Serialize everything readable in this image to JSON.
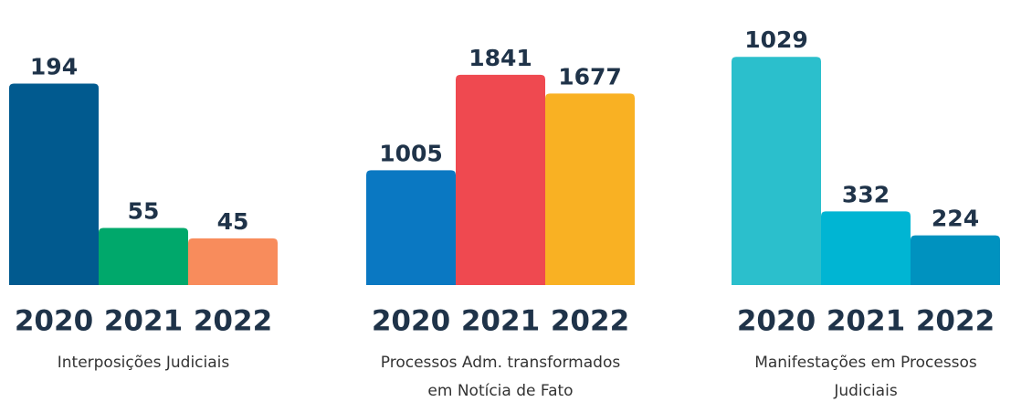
{
  "chart_data": [
    {
      "type": "bar",
      "title": [
        "Interposições Judiciais"
      ],
      "categories": [
        "2020",
        "2021",
        "2022"
      ],
      "values": [
        194,
        55,
        45
      ],
      "colors": [
        "#015a8f",
        "#00a86b",
        "#f88c5c"
      ],
      "ylim": [
        0,
        220
      ]
    },
    {
      "type": "bar",
      "title": [
        "Processos Adm. transformados",
        "em Notícia de Fato"
      ],
      "categories": [
        "2020",
        "2021",
        "2022"
      ],
      "values": [
        1005,
        1841,
        1677
      ],
      "colors": [
        "#0a78c2",
        "#ef4950",
        "#f9b123"
      ],
      "ylim": [
        0,
        2000
      ]
    },
    {
      "type": "bar",
      "title": [
        "Manifestações em Processos",
        "Judiciais"
      ],
      "categories": [
        "2020",
        "2021",
        "2022"
      ],
      "values": [
        1029,
        332,
        224
      ],
      "colors": [
        "#2bbfcc",
        "#00b5d3",
        "#0092bf"
      ],
      "ylim": [
        0,
        1030
      ]
    }
  ]
}
